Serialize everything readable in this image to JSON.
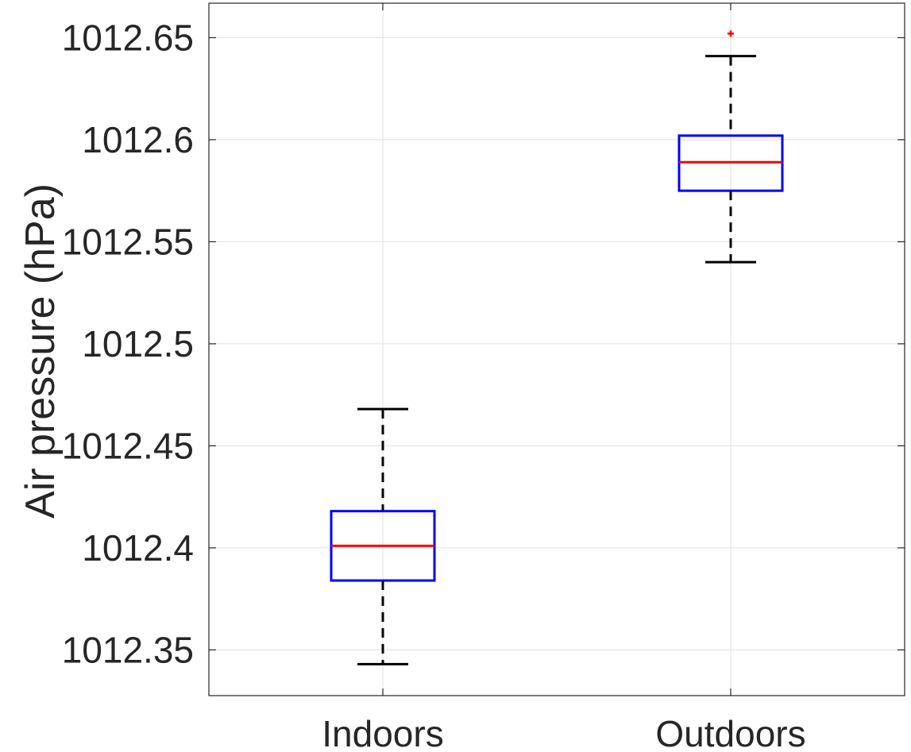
{
  "chart_data": {
    "type": "box",
    "title": "",
    "xlabel": "",
    "ylabel": "Air pressure (hPa)",
    "ylim": [
      1012.3276,
      1012.6669
    ],
    "yticks": [
      1012.35,
      1012.4,
      1012.45,
      1012.5,
      1012.55,
      1012.6,
      1012.65
    ],
    "ytick_labels": [
      "1012.35",
      "1012.4",
      "1012.45",
      "1012.5",
      "1012.55",
      "1012.6",
      "1012.65"
    ],
    "categories": [
      "Indoors",
      "Outdoors"
    ],
    "grid": true,
    "boxes": [
      {
        "category": "Indoors",
        "whisker_low": 1012.343,
        "q1": 1012.384,
        "median": 1012.401,
        "q3": 1012.418,
        "whisker_high": 1012.468,
        "outliers": []
      },
      {
        "category": "Outdoors",
        "whisker_low": 1012.54,
        "q1": 1012.575,
        "median": 1012.589,
        "q3": 1012.602,
        "whisker_high": 1012.641,
        "outliers": [
          1012.652
        ]
      }
    ],
    "colors": {
      "box": "#0000ff",
      "median": "#ff0000",
      "whisker": "#000000",
      "outlier": "#ff0000",
      "grid": "#e0e0e0",
      "axis": "#262626"
    }
  }
}
